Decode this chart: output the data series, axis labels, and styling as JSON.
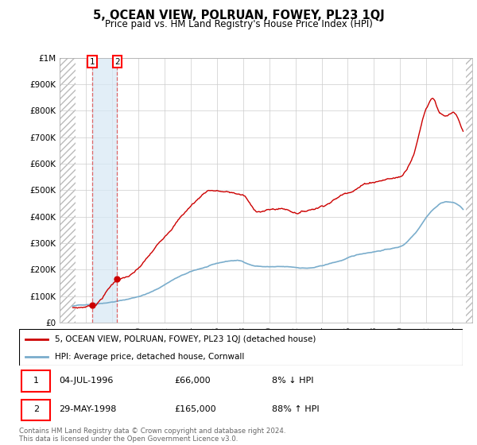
{
  "title": "5, OCEAN VIEW, POLRUAN, FOWEY, PL23 1QJ",
  "subtitle": "Price paid vs. HM Land Registry's House Price Index (HPI)",
  "ylabel_vals": [
    "£0",
    "£100K",
    "£200K",
    "£300K",
    "£400K",
    "£500K",
    "£600K",
    "£700K",
    "£800K",
    "£900K",
    "£1M"
  ],
  "yticks": [
    0,
    100000,
    200000,
    300000,
    400000,
    500000,
    600000,
    700000,
    800000,
    900000,
    1000000
  ],
  "xlim_start": 1994.0,
  "xlim_end": 2025.5,
  "ylim_min": 0,
  "ylim_max": 1000000,
  "sale1_x": 1996.5,
  "sale1_y": 66000,
  "sale2_x": 1998.4,
  "sale2_y": 165000,
  "hatch_end": 1995.2,
  "hatch_start_right": 2025.0,
  "legend_line1": "5, OCEAN VIEW, POLRUAN, FOWEY, PL23 1QJ (detached house)",
  "legend_line2": "HPI: Average price, detached house, Cornwall",
  "note1_label": "1",
  "note1_date": "04-JUL-1996",
  "note1_price": "£66,000",
  "note1_hpi": "8% ↓ HPI",
  "note2_label": "2",
  "note2_date": "29-MAY-1998",
  "note2_price": "£165,000",
  "note2_hpi": "88% ↑ HPI",
  "copyright": "Contains HM Land Registry data © Crown copyright and database right 2024.\nThis data is licensed under the Open Government Licence v3.0.",
  "line_color_red": "#cc0000",
  "line_color_blue": "#7aadcc",
  "grid_color": "#cccccc",
  "sale_dot_color": "#cc0000",
  "shade_color": "#d6e8f5"
}
